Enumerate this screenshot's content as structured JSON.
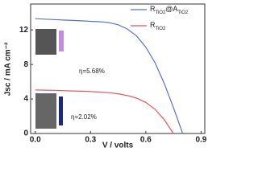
{
  "chart_data": {
    "type": "line",
    "xlabel": "V / volts",
    "ylabel": "Jsc / mA cm⁻²",
    "xlim": [
      -0.025,
      0.92
    ],
    "ylim": [
      0,
      15
    ],
    "xticks": [
      {
        "value": 0,
        "label": "0.0"
      },
      0.3,
      0.6,
      0.9
    ],
    "yticks": [
      0,
      4,
      8,
      12
    ],
    "legend": "top-right",
    "annotations": [
      "η=5.68%",
      "η=2.02%"
    ],
    "series": [
      {
        "name": "RTiO2@ATiO2",
        "color": "#5b6fd6",
        "x": [
          0,
          0.05,
          0.1,
          0.15,
          0.2,
          0.25,
          0.3,
          0.35,
          0.4,
          0.45,
          0.5,
          0.55,
          0.6,
          0.65,
          0.7,
          0.75,
          0.8
        ],
        "values": [
          13.3,
          13.25,
          13.2,
          13.15,
          13.1,
          13.05,
          13.0,
          12.95,
          12.85,
          12.6,
          12.1,
          11.3,
          10.0,
          8.2,
          5.8,
          3.0,
          0
        ]
      },
      {
        "name": "RTiO2",
        "color": "#e8545c",
        "x": [
          0,
          0.05,
          0.1,
          0.15,
          0.2,
          0.25,
          0.3,
          0.35,
          0.4,
          0.45,
          0.5,
          0.55,
          0.6,
          0.65,
          0.7,
          0.75
        ],
        "values": [
          5.05,
          5.02,
          5.0,
          4.97,
          4.93,
          4.9,
          4.86,
          4.8,
          4.72,
          4.6,
          4.4,
          4.1,
          3.6,
          2.8,
          1.6,
          0
        ]
      }
    ]
  }
}
